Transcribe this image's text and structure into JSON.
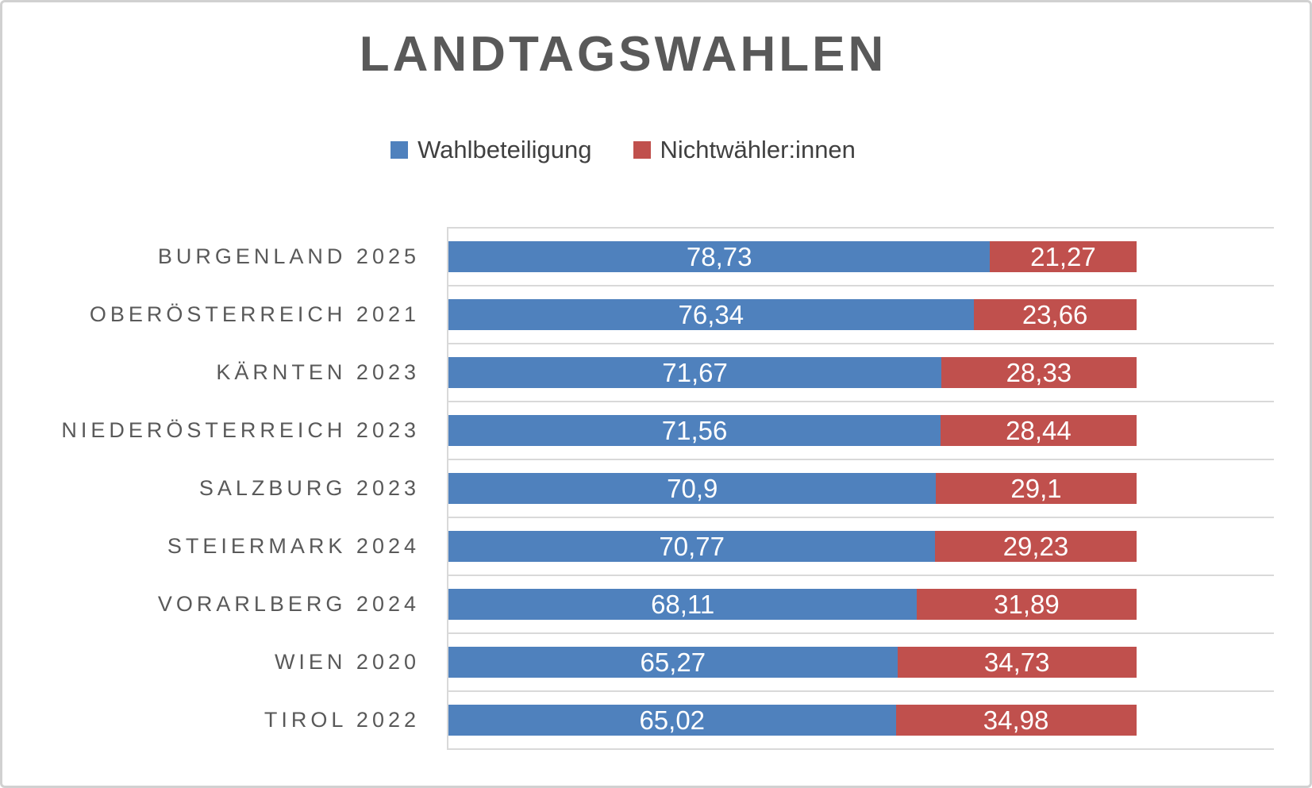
{
  "title": "LANDTAGSWAHLEN",
  "legend": {
    "items": [
      {
        "label": "Wahlbeteiligung",
        "color": "#4F81BD"
      },
      {
        "label": "Nichtwähler:innen",
        "color": "#C0504D"
      }
    ]
  },
  "chart_data": {
    "type": "bar",
    "orientation": "horizontal",
    "stacked": true,
    "title": "LANDTAGSWAHLEN",
    "categories": [
      "BURGENLAND 2025",
      "OBERÖSTERREICH 2021",
      "KÄRNTEN 2023",
      "NIEDERÖSTERREICH 2023",
      "SALZBURG 2023",
      "STEIERMARK 2024",
      "VORARLBERG 2024",
      "WIEN 2020",
      "TIROL 2022"
    ],
    "series": [
      {
        "name": "Wahlbeteiligung",
        "color": "#4F81BD",
        "values": [
          78.73,
          76.34,
          71.67,
          71.56,
          70.9,
          70.77,
          68.11,
          65.27,
          65.02
        ],
        "labels": [
          "78,73",
          "76,34",
          "71,67",
          "71,56",
          "70,9",
          "70,77",
          "68,11",
          "65,27",
          "65,02"
        ]
      },
      {
        "name": "Nichtwähler:innen",
        "color": "#C0504D",
        "values": [
          21.27,
          23.66,
          28.33,
          28.44,
          29.1,
          29.23,
          31.89,
          34.73,
          34.98
        ],
        "labels": [
          "21,27",
          "23,66",
          "28,33",
          "28,44",
          "29,1",
          "29,23",
          "31,89",
          "34,73",
          "34,98"
        ]
      }
    ],
    "xlim": [
      0,
      120
    ],
    "value_labels": "center-white",
    "gridlines": "category-boundaries",
    "legend_position": "top-center"
  },
  "colors": {
    "series_wahlbeteiligung": "#4F81BD",
    "series_nichtwaehler": "#C0504D",
    "title_text": "#595959",
    "category_text": "#595959",
    "legend_text": "#404040",
    "value_label_text": "#FFFFFF",
    "gridline": "#D9D9D9",
    "frame_border": "#D1D1D1",
    "background": "#FFFFFF"
  }
}
